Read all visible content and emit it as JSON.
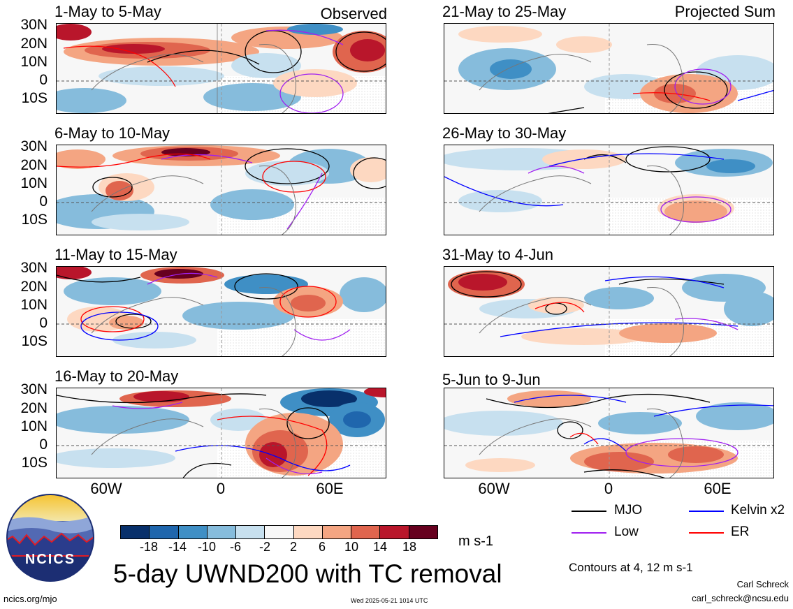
{
  "column_titles": {
    "left": "Observed",
    "right": "Projected Sum"
  },
  "panels": [
    {
      "title": "1-May to 5-May"
    },
    {
      "title": "6-May to 10-May"
    },
    {
      "title": "11-May to 15-May"
    },
    {
      "title": "16-May to 20-May"
    },
    {
      "title": "21-May to 25-May"
    },
    {
      "title": "26-May to 30-May"
    },
    {
      "title": "31-May to 4-Jun"
    },
    {
      "title": "5-Jun to 9-Jun"
    }
  ],
  "lat_labels": [
    "30N",
    "20N",
    "10N",
    "0",
    "10S"
  ],
  "lon_labels": [
    "60W",
    "0",
    "60E"
  ],
  "colorbar": {
    "ticks": [
      "-18",
      "-14",
      "-10",
      "-6",
      "-2",
      "2",
      "6",
      "10",
      "14",
      "18"
    ],
    "colors": [
      "#08306b",
      "#1f66ad",
      "#3f8fc5",
      "#86bcdc",
      "#c7e0ef",
      "#f7f7f7",
      "#fdd8c1",
      "#f4a582",
      "#e0654e",
      "#b9162b",
      "#67001f"
    ],
    "units": "m s-1"
  },
  "main_title": "5-day UWND200 with TC removal",
  "legend": {
    "items": [
      {
        "label": "MJO",
        "color": "#000000"
      },
      {
        "label": "Kelvin x2",
        "color": "#0000ff"
      },
      {
        "label": "Low",
        "color": "#a020f0"
      },
      {
        "label": "ER",
        "color": "#ff0000"
      }
    ],
    "contours_note": "Contours at 4, 12 m s-1"
  },
  "logo": {
    "text": "NCICS"
  },
  "footer": {
    "website": "ncics.org/mjo",
    "timestamp": "Wed 2025-05-21 1014 UTC",
    "author": "Carl Schreck",
    "email": "carl_schreck@ncsu.edu"
  }
}
